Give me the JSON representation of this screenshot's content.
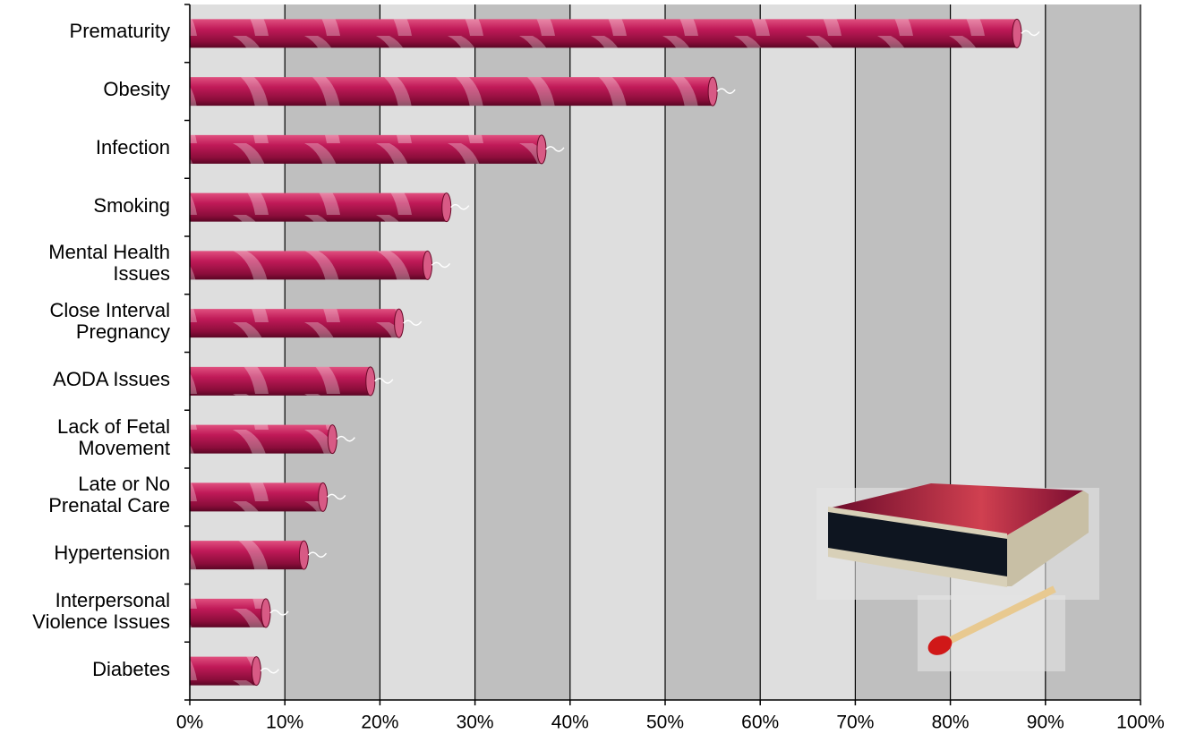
{
  "chart_data": {
    "type": "barh",
    "categories": [
      "Prematurity",
      "Obesity",
      "Infection",
      "Smoking",
      "Mental Health\nIssues",
      "Close Interval\nPregnancy",
      "AODA Issues",
      "Lack of Fetal\nMovement",
      "Late or No\nPrenatal Care",
      "Hypertension",
      "Interpersonal\nViolence Issues",
      "Diabetes"
    ],
    "values": [
      87,
      55,
      37,
      27,
      25,
      22,
      19,
      15,
      14,
      12,
      8,
      7
    ],
    "color": "#b3164f",
    "xlim": [
      0,
      100
    ],
    "xticks": [
      {
        "value": 0,
        "label": "0%"
      },
      {
        "value": 10,
        "label": "10%"
      },
      {
        "value": 20,
        "label": "20%"
      },
      {
        "value": 30,
        "label": "30%"
      },
      {
        "value": 40,
        "label": "40%"
      },
      {
        "value": 50,
        "label": "50%"
      },
      {
        "value": 60,
        "label": "60%"
      },
      {
        "value": 70,
        "label": "70%"
      },
      {
        "value": 80,
        "label": "80%"
      },
      {
        "value": 90,
        "label": "90%"
      },
      {
        "value": 100,
        "label": "100%"
      }
    ],
    "grid": true
  }
}
